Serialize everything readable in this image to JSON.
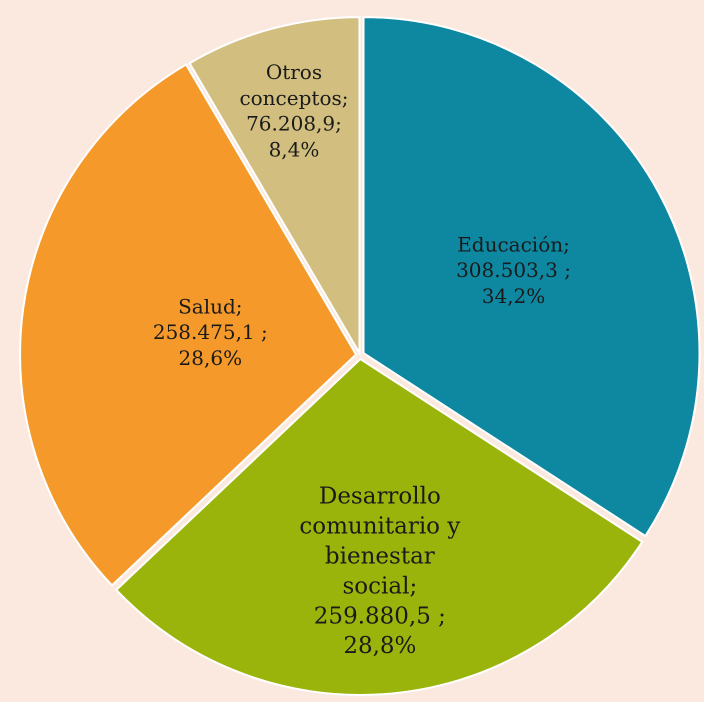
{
  "chart_data": {
    "type": "pie",
    "categories": [
      "Educación;",
      "Desarrollo comunitario y bienestar social;",
      "Salud;",
      "Otros conceptos;"
    ],
    "values": [
      308503.3,
      259880.5,
      258475.1,
      76208.9
    ],
    "value_labels": [
      "308.503,3 ;",
      "259.880,5 ;",
      "258.475,1 ;",
      "76.208,9;"
    ],
    "percentages": [
      34.2,
      28.8,
      28.6,
      8.4
    ],
    "percentage_labels": [
      "34,2%",
      "28,8%",
      "28,6%",
      "8,4%"
    ],
    "colors": [
      "#0e87a0",
      "#9bb40c",
      "#f59a2a",
      "#d2bf7f"
    ]
  }
}
